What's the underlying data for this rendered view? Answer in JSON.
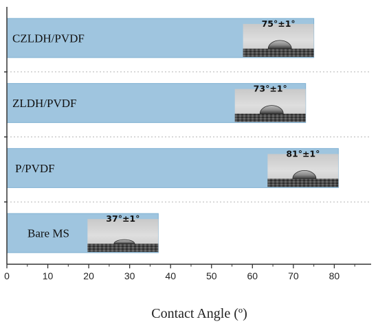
{
  "chart_data": {
    "type": "bar",
    "orientation": "horizontal",
    "categories": [
      "Bare MS",
      "P/PVDF",
      "ZLDH/PVDF",
      "CZLDH/PVDF"
    ],
    "values": [
      37,
      81,
      73,
      75
    ],
    "value_labels": [
      "37°±1°",
      "81°±1°",
      "73°±1°",
      "75°±1°"
    ],
    "xlabel": "Contact Angle (º)",
    "xlim": [
      0,
      89
    ],
    "xticks": [
      "0",
      "10",
      "20",
      "30",
      "40",
      "50",
      "60",
      "70",
      "80"
    ],
    "grid": "dotted horizontal separators",
    "colors": {
      "bar": "#9fc5df",
      "bar_edge": "#7fb0d2",
      "axis": "#333333",
      "separator": "#b5b5b5"
    }
  }
}
